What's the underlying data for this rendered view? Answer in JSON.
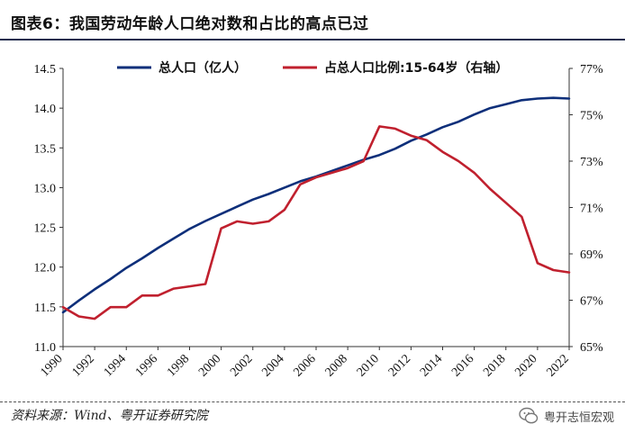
{
  "title": "图表6：我国劳动年龄人口绝对数和占比的高点已过",
  "source": "资料来源：Wind、粤开证券研究院",
  "watermark": "粤开志恒宏观",
  "chart_data": {
    "type": "line",
    "x": [
      1990,
      1991,
      1992,
      1993,
      1994,
      1995,
      1996,
      1997,
      1998,
      1999,
      2000,
      2001,
      2002,
      2003,
      2004,
      2005,
      2006,
      2007,
      2008,
      2009,
      2010,
      2011,
      2012,
      2013,
      2014,
      2015,
      2016,
      2017,
      2018,
      2019,
      2020,
      2021,
      2022
    ],
    "xticks": [
      "1990",
      "1992",
      "1994",
      "1996",
      "1998",
      "2000",
      "2002",
      "2004",
      "2006",
      "2008",
      "2010",
      "2012",
      "2014",
      "2016",
      "2018",
      "2020",
      "2022"
    ],
    "left_axis": {
      "ylim": [
        11.0,
        14.5
      ],
      "ticks": [
        "11.0",
        "11.5",
        "12.0",
        "12.5",
        "13.0",
        "13.5",
        "14.0",
        "14.5"
      ]
    },
    "right_axis": {
      "ylim": [
        65,
        77
      ],
      "ticks": [
        "65%",
        "67%",
        "69%",
        "71%",
        "73%",
        "75%",
        "77%"
      ]
    },
    "series": [
      {
        "name": "总人口（亿人）",
        "axis": "left",
        "color": "#0e2f7a",
        "values": [
          11.43,
          11.58,
          11.72,
          11.85,
          11.99,
          12.11,
          12.24,
          12.36,
          12.48,
          12.58,
          12.67,
          12.76,
          12.85,
          12.92,
          13.0,
          13.08,
          13.14,
          13.21,
          13.28,
          13.35,
          13.41,
          13.49,
          13.59,
          13.67,
          13.76,
          13.83,
          13.92,
          14.0,
          14.05,
          14.1,
          14.12,
          14.13,
          14.12
        ]
      },
      {
        "name": "占总人口比例:15-64岁（右轴）",
        "axis": "right",
        "color": "#c0202e",
        "values": [
          66.7,
          66.3,
          66.2,
          66.7,
          66.7,
          67.2,
          67.2,
          67.5,
          67.6,
          67.7,
          70.1,
          70.4,
          70.3,
          70.4,
          70.9,
          72.0,
          72.3,
          72.5,
          72.7,
          73.0,
          74.5,
          74.4,
          74.1,
          73.9,
          73.4,
          73.0,
          72.5,
          71.8,
          71.2,
          70.6,
          68.6,
          68.3,
          68.2
        ]
      }
    ],
    "legend_position": "top",
    "grid": false
  }
}
